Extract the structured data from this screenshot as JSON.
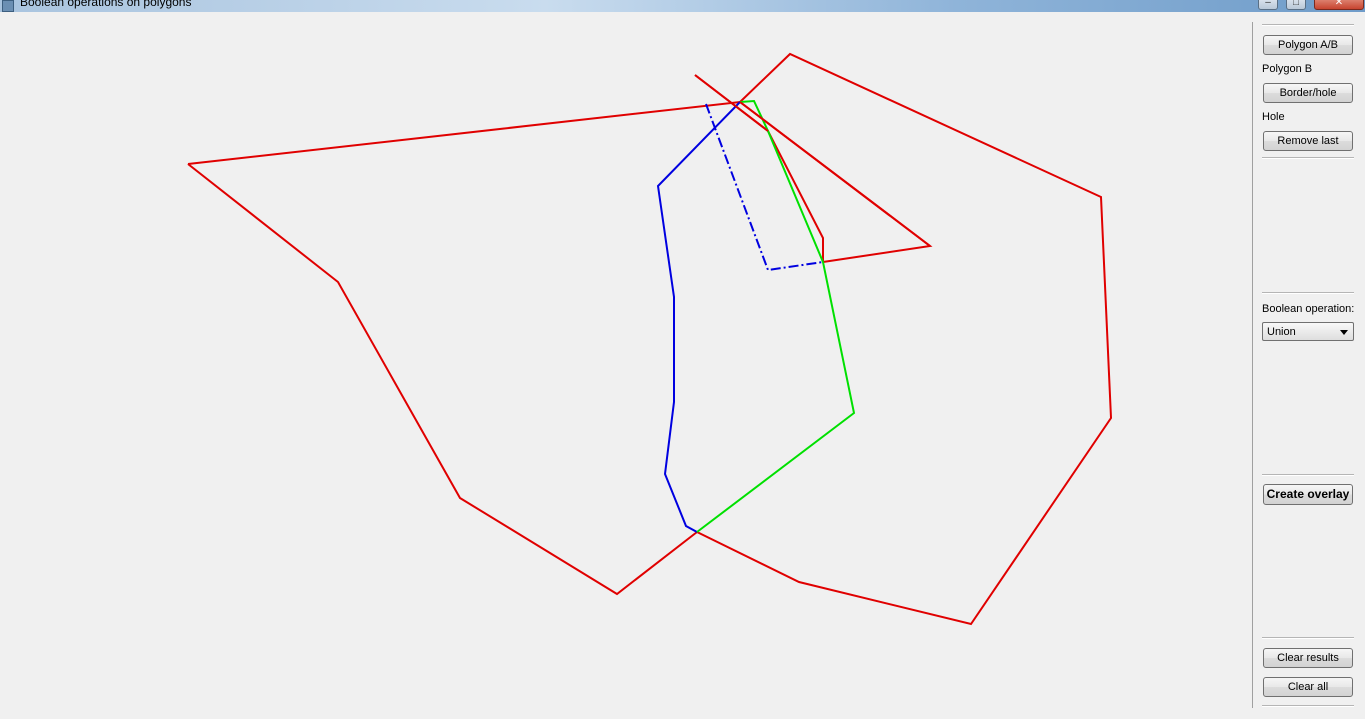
{
  "window": {
    "title": "Boolean operations on polygons"
  },
  "canvas": {
    "colors": {
      "polygon": "#e00000",
      "result": "#0000e0",
      "intersection": "#00e000"
    }
  },
  "panel": {
    "polygon_toggle_label": "Polygon A/B",
    "current_polygon_status": "Polygon B",
    "border_hole_label": "Border/hole",
    "border_hole_status": "Hole",
    "remove_last_label": "Remove last",
    "operation_label": "Boolean operation:",
    "operation_selected": "Union",
    "create_overlay_label": "Create overlay",
    "clear_results_label": "Clear results",
    "clear_all_label": "Clear all"
  }
}
